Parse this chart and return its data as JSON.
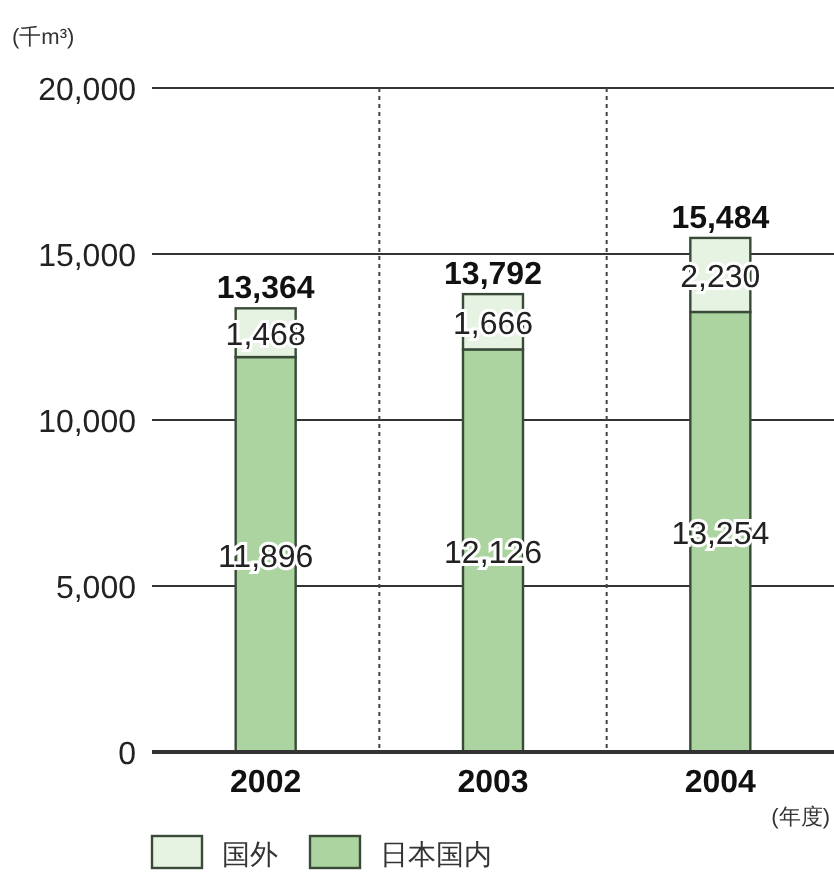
{
  "chart_data": {
    "type": "bar",
    "stacked": true,
    "ylabel": "(千m³)",
    "xlabel": "(年度)",
    "categories": [
      "2002",
      "2003",
      "2004"
    ],
    "series": [
      {
        "name": "日本国内",
        "color": "#acd4a0",
        "values": [
          11896,
          12126,
          13254
        ],
        "value_labels": [
          "11,896",
          "12,126",
          "13,254"
        ]
      },
      {
        "name": "国外",
        "color": "#e6f2e2",
        "values": [
          1468,
          1666,
          2230
        ],
        "value_labels": [
          "1,468",
          "1,666",
          "2,230"
        ]
      }
    ],
    "ylim": [
      0,
      20000
    ],
    "yticks": [
      0,
      {
        "value": 5000,
        "label": "5,000"
      },
      {
        "value": 10000,
        "label": "10,000"
      },
      {
        "value": 15000,
        "label": "15,000"
      },
      {
        "value": 20000,
        "label": "20,000"
      }
    ],
    "grid": "y",
    "legend": "bottom",
    "totals": [
      "13,364",
      "13,792",
      "15,484"
    ]
  }
}
